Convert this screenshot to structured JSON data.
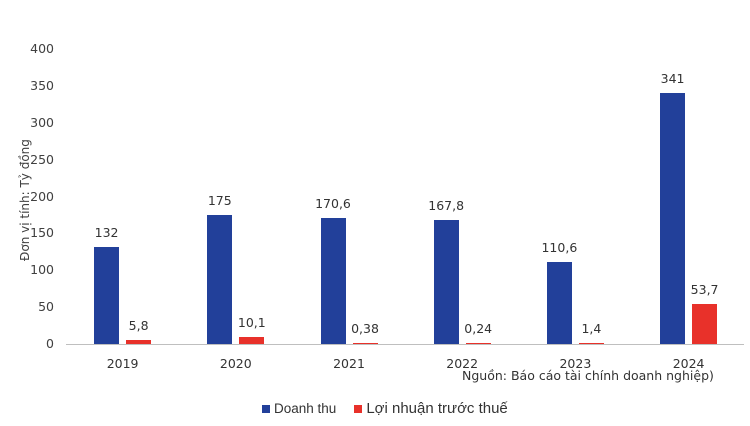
{
  "chart_data": {
    "type": "bar",
    "title": "",
    "xlabel": "",
    "ylabel": "Đơn vị tính: Tỷ đồng",
    "ylim": [
      0,
      400
    ],
    "yticks": [
      "0",
      "50",
      "100",
      "150",
      "200",
      "250",
      "300",
      "350",
      "400"
    ],
    "categories": [
      "2019",
      "2020",
      "2021",
      "2022",
      "2023",
      "2024"
    ],
    "series": [
      {
        "name": "Doanh thu",
        "color": "#22409a",
        "values": [
          132,
          175,
          170.6,
          167.8,
          110.6,
          341
        ],
        "labels": [
          "132",
          "175",
          "170,6",
          "167,8",
          "110,6",
          "341"
        ]
      },
      {
        "name": "Lợi nhuận trước thuế",
        "color": "#e8312a",
        "values": [
          5.8,
          10.1,
          0.38,
          0.24,
          1.4,
          53.7
        ],
        "labels": [
          "5,8",
          "10,1",
          "0,38",
          "0,24",
          "1,4",
          "53,7"
        ]
      }
    ],
    "annotations": [
      "Nguồn: Báo cáo tài chính doanh nghiệp)"
    ],
    "grid": false,
    "legend_position": "bottom"
  },
  "ylabel": "Đơn vị tính: Tỷ đồng",
  "source": "Nguồn: Báo cáo tài chính doanh nghiệp)",
  "legend": {
    "s1": "Doanh thu",
    "s2": "Lợi nhuận trước thuế"
  }
}
